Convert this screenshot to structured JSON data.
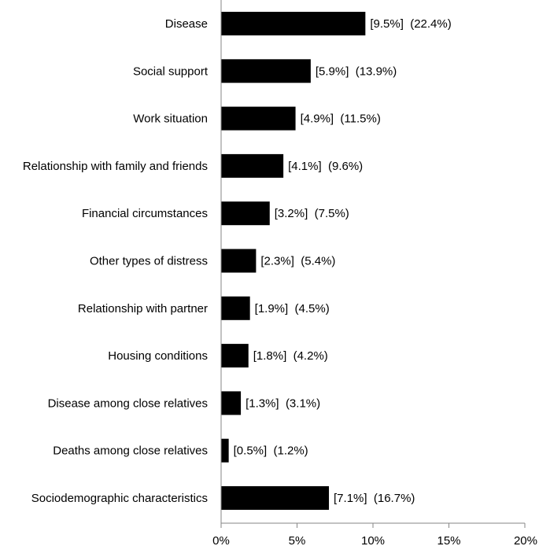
{
  "chart_data": {
    "type": "bar",
    "orientation": "horizontal",
    "categories": [
      "Disease",
      "Social support",
      "Work situation",
      "Relationship with family and friends",
      "Financial circumstances",
      "Other types of distress",
      "Relationship with partner",
      "Housing conditions",
      "Disease among close relatives",
      "Deaths among close relatives",
      "Sociodemographic characteristics"
    ],
    "values": [
      9.5,
      5.9,
      4.9,
      4.1,
      3.2,
      2.3,
      1.9,
      1.8,
      1.3,
      0.5,
      7.1
    ],
    "data_labels": [
      "[9.5%]  (22.4%)",
      "[5.9%]  (13.9%)",
      "[4.9%]  (11.5%)",
      "[4.1%]  (9.6%)",
      "[3.2%]  (7.5%)",
      "[2.3%]  (5.4%)",
      "[1.9%]  (4.5%)",
      "[1.8%]  (4.2%)",
      "[1.3%]  (3.1%)",
      "[0.5%]  (1.2%)",
      "[7.1%]  (16.7%)"
    ],
    "xlim": [
      0,
      20
    ],
    "x_ticks": [
      0,
      5,
      10,
      15,
      20
    ],
    "x_tick_labels": [
      "0%",
      "5%",
      "10%",
      "15%",
      "20%"
    ],
    "title": "",
    "xlabel": "",
    "ylabel": "",
    "grid": false,
    "legend": "none",
    "bar_color": "#000000",
    "axis_color": "#868686"
  }
}
